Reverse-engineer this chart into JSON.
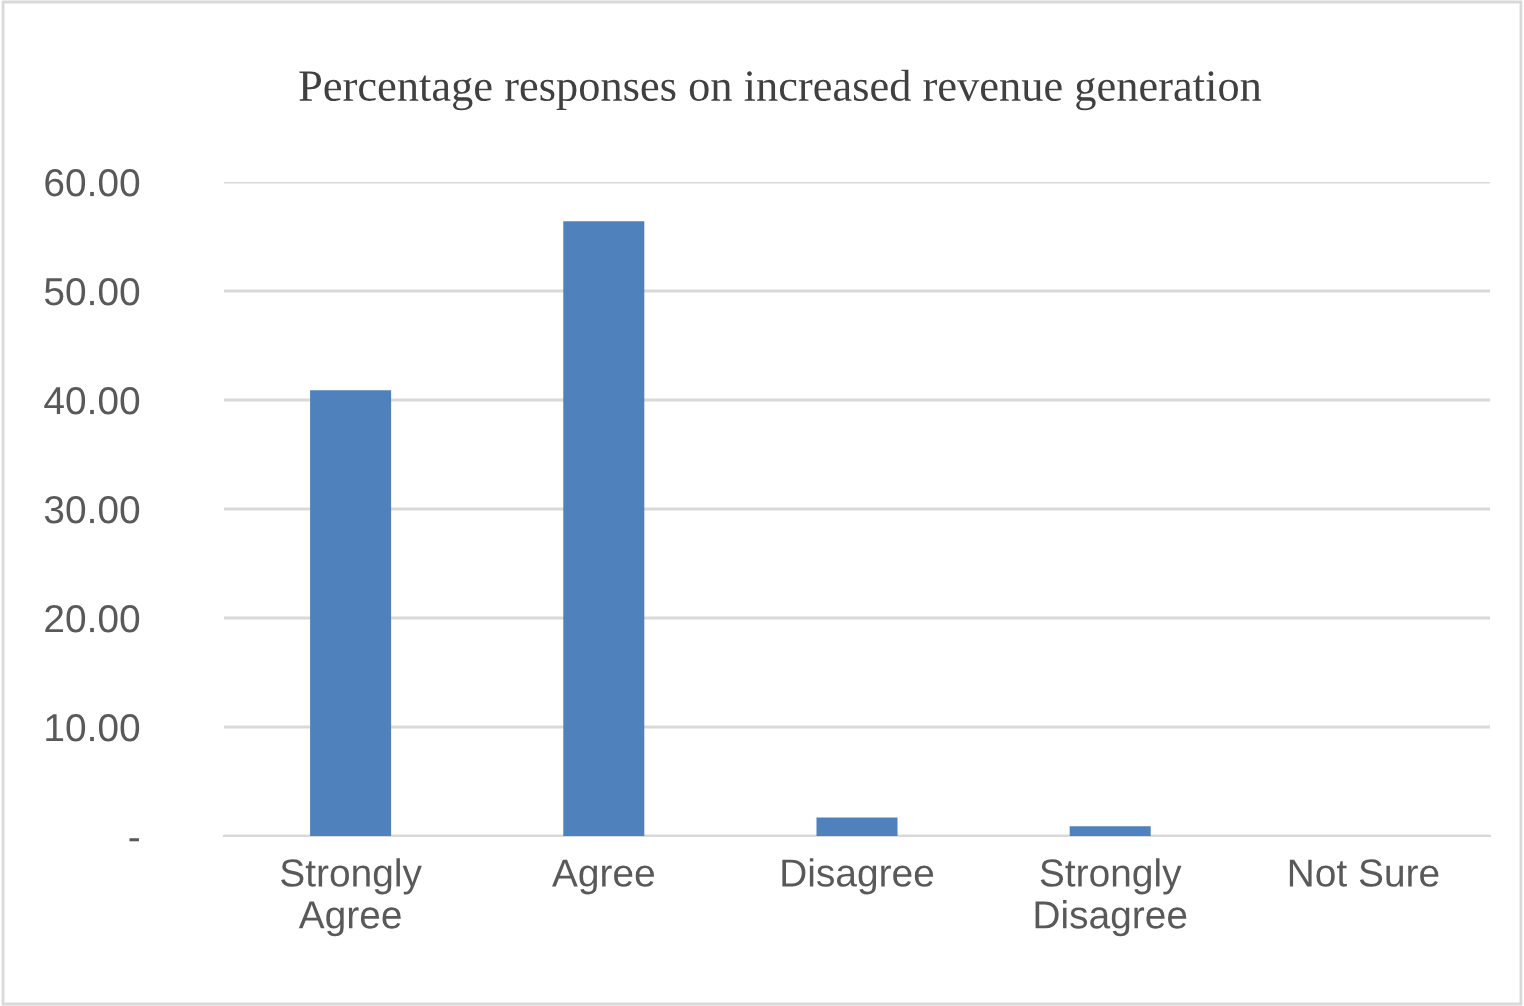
{
  "chart_data": {
    "type": "bar",
    "title": "Percentage responses on increased revenue generation",
    "categories": [
      "Strongly\nAgree",
      "Agree",
      "Disagree",
      "Strongly\nDisagree",
      "Not Sure"
    ],
    "values": [
      40.9,
      56.4,
      1.7,
      0.9,
      0
    ],
    "color": "#4f81bd",
    "ylim": [
      0,
      60
    ],
    "yticks": [
      {
        "value": 0,
        "label": "-"
      },
      {
        "value": 10,
        "label": "10.00"
      },
      {
        "value": 20,
        "label": "20.00"
      },
      {
        "value": 30,
        "label": "30.00"
      },
      {
        "value": 40,
        "label": "40.00"
      },
      {
        "value": 50,
        "label": "50.00"
      },
      {
        "value": 60,
        "label": "60.00"
      }
    ],
    "grid": "y",
    "legend": false
  }
}
